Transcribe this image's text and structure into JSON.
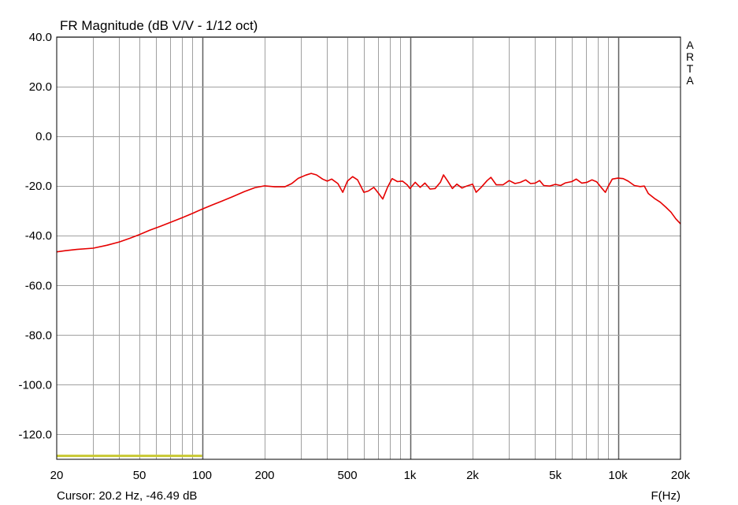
{
  "chart_data": {
    "type": "line",
    "title": "FR Magnitude (dB V/V - 1/12 oct)",
    "xlabel": "F(Hz)",
    "ylabel": "",
    "x_scale": "log",
    "xlim": [
      20,
      20000
    ],
    "ylim": [
      -130,
      40
    ],
    "grid": true,
    "x_ticks": [
      20,
      50,
      100,
      200,
      500,
      1000,
      2000,
      5000,
      10000,
      20000
    ],
    "x_tick_labels": [
      "20",
      "50",
      "100",
      "200",
      "500",
      "1k",
      "2k",
      "5k",
      "10k",
      "20k"
    ],
    "y_ticks": [
      40,
      20,
      0,
      -20,
      -40,
      -60,
      -80,
      -100,
      -120
    ],
    "y_tick_labels": [
      "40.0",
      "20.0",
      "0.0",
      "-20.0",
      "-40.0",
      "-60.0",
      "-80.0",
      "-100.0",
      "-120.0"
    ],
    "cursor_text": "Cursor: 20.2 Hz, -46.49 dB",
    "brand_text": "ARTA",
    "colors": {
      "curve": "#e60000",
      "marker_band": "#c8c832",
      "grid_minor": "#a0a0a0",
      "grid_major": "#606060"
    },
    "marker_band": {
      "x": [
        20,
        100
      ],
      "y": -128.6
    },
    "series": [
      {
        "points": [
          [
            20,
            -46.5
          ],
          [
            22,
            -46
          ],
          [
            25,
            -45.5
          ],
          [
            30,
            -45
          ],
          [
            35,
            -43.8
          ],
          [
            40,
            -42.5
          ],
          [
            45,
            -41
          ],
          [
            50,
            -39.5
          ],
          [
            56,
            -37.8
          ],
          [
            63,
            -36.2
          ],
          [
            71,
            -34.5
          ],
          [
            80,
            -32.8
          ],
          [
            90,
            -31
          ],
          [
            100,
            -29.3
          ],
          [
            112,
            -27.6
          ],
          [
            125,
            -26
          ],
          [
            140,
            -24.3
          ],
          [
            160,
            -22.2
          ],
          [
            180,
            -20.6
          ],
          [
            200,
            -19.9
          ],
          [
            224,
            -20.3
          ],
          [
            250,
            -20.3
          ],
          [
            270,
            -19.0
          ],
          [
            290,
            -16.9
          ],
          [
            315,
            -15.6
          ],
          [
            335,
            -14.9
          ],
          [
            355,
            -15.5
          ],
          [
            380,
            -17.2
          ],
          [
            400,
            -18.0
          ],
          [
            420,
            -17.2
          ],
          [
            450,
            -19.0
          ],
          [
            475,
            -22.5
          ],
          [
            500,
            -18.0
          ],
          [
            530,
            -16.2
          ],
          [
            560,
            -17.5
          ],
          [
            600,
            -22.5
          ],
          [
            630,
            -22.0
          ],
          [
            670,
            -20.5
          ],
          [
            710,
            -23.2
          ],
          [
            740,
            -25.2
          ],
          [
            780,
            -20.5
          ],
          [
            820,
            -17.0
          ],
          [
            870,
            -18.2
          ],
          [
            920,
            -18.0
          ],
          [
            970,
            -19.5
          ],
          [
            1000,
            -21.0
          ],
          [
            1060,
            -18.5
          ],
          [
            1120,
            -20.5
          ],
          [
            1180,
            -18.8
          ],
          [
            1250,
            -21.2
          ],
          [
            1320,
            -21.0
          ],
          [
            1400,
            -18.5
          ],
          [
            1450,
            -15.5
          ],
          [
            1520,
            -18.0
          ],
          [
            1600,
            -21.0
          ],
          [
            1680,
            -19.2
          ],
          [
            1780,
            -20.8
          ],
          [
            1870,
            -20.0
          ],
          [
            2000,
            -19.2
          ],
          [
            2080,
            -22.5
          ],
          [
            2200,
            -20.5
          ],
          [
            2350,
            -17.8
          ],
          [
            2450,
            -16.5
          ],
          [
            2600,
            -19.5
          ],
          [
            2800,
            -19.5
          ],
          [
            3000,
            -17.8
          ],
          [
            3200,
            -19.0
          ],
          [
            3400,
            -18.5
          ],
          [
            3600,
            -17.5
          ],
          [
            3800,
            -19.0
          ],
          [
            4000,
            -18.8
          ],
          [
            4200,
            -17.8
          ],
          [
            4400,
            -19.8
          ],
          [
            4700,
            -20.0
          ],
          [
            5000,
            -19.3
          ],
          [
            5300,
            -19.8
          ],
          [
            5600,
            -18.7
          ],
          [
            6000,
            -18.2
          ],
          [
            6300,
            -17.2
          ],
          [
            6700,
            -18.8
          ],
          [
            7100,
            -18.5
          ],
          [
            7500,
            -17.5
          ],
          [
            7900,
            -18.3
          ],
          [
            8300,
            -20.5
          ],
          [
            8700,
            -22.5
          ],
          [
            9000,
            -20.0
          ],
          [
            9400,
            -17.2
          ],
          [
            10000,
            -16.8
          ],
          [
            10600,
            -17.0
          ],
          [
            11200,
            -18.0
          ],
          [
            12000,
            -19.8
          ],
          [
            12800,
            -20.2
          ],
          [
            13400,
            -20.0
          ],
          [
            14000,
            -23.0
          ],
          [
            15000,
            -25.0
          ],
          [
            16000,
            -26.5
          ],
          [
            17000,
            -28.5
          ],
          [
            18000,
            -30.5
          ],
          [
            19000,
            -33.2
          ],
          [
            20000,
            -35.2
          ]
        ]
      }
    ]
  }
}
